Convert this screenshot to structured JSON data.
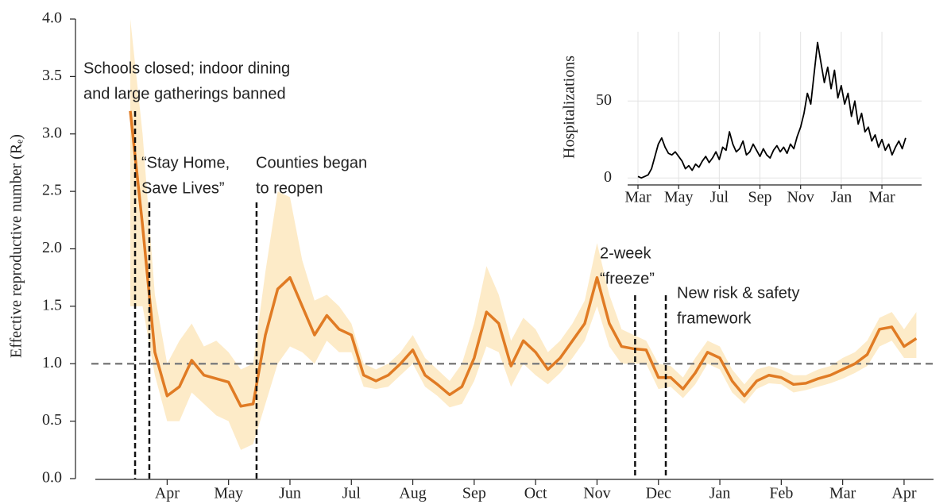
{
  "chart_data": [
    {
      "type": "line",
      "ylabel": "Effective reproductive number (Rₑ)",
      "categories": [
        null,
        null,
        null,
        "Apr",
        null,
        null,
        null,
        null,
        "May",
        null,
        null,
        null,
        null,
        "Jun",
        null,
        null,
        null,
        null,
        "Jul",
        null,
        null,
        null,
        null,
        "Aug",
        null,
        null,
        null,
        null,
        "Sep",
        null,
        null,
        null,
        null,
        "Oct",
        null,
        null,
        null,
        null,
        "Nov",
        null,
        null,
        null,
        null,
        "Dec",
        null,
        null,
        null,
        null,
        "Jan",
        null,
        null,
        null,
        null,
        "Feb",
        null,
        null,
        null,
        null,
        "Mar",
        null,
        null,
        null,
        null,
        "Apr",
        null
      ],
      "series": [
        {
          "color": "#e07b24",
          "band_color": "#fdebc8",
          "values": [
            3.2,
            2.2,
            1.1,
            0.72,
            0.8,
            1.03,
            0.9,
            0.87,
            0.84,
            0.63,
            0.65,
            1.25,
            1.65,
            1.75,
            1.5,
            1.25,
            1.42,
            1.3,
            1.25,
            0.9,
            0.85,
            0.9,
            1.0,
            1.12,
            0.9,
            0.82,
            0.73,
            0.8,
            1.05,
            1.45,
            1.35,
            0.98,
            1.2,
            1.1,
            0.95,
            1.05,
            1.2,
            1.35,
            1.75,
            1.35,
            1.15,
            1.13,
            1.12,
            0.88,
            0.88,
            0.78,
            0.92,
            1.1,
            1.05,
            0.85,
            0.72,
            0.85,
            0.9,
            0.88,
            0.82,
            0.83,
            0.87,
            0.9,
            0.95,
            1.0,
            1.08,
            1.3,
            1.32,
            1.15,
            1.22
          ],
          "lower": [
            1.5,
            1.5,
            0.9,
            0.5,
            0.5,
            0.75,
            0.65,
            0.55,
            0.5,
            0.25,
            0.3,
            0.65,
            1.0,
            1.15,
            1.1,
            1.0,
            1.2,
            1.1,
            1.1,
            0.8,
            0.78,
            0.8,
            0.9,
            1.0,
            0.8,
            0.72,
            0.62,
            0.65,
            0.85,
            1.15,
            1.1,
            0.8,
            1.0,
            0.9,
            0.82,
            0.92,
            1.05,
            1.2,
            1.5,
            1.15,
            1.0,
            1.0,
            1.0,
            0.78,
            0.8,
            0.7,
            0.82,
            1.0,
            0.95,
            0.75,
            0.65,
            0.78,
            0.83,
            0.82,
            0.75,
            0.77,
            0.8,
            0.83,
            0.87,
            0.92,
            0.98,
            1.15,
            1.2,
            1.05,
            1.05
          ],
          "upper": [
            4.0,
            3.0,
            1.6,
            1.0,
            1.2,
            1.35,
            1.15,
            1.2,
            1.1,
            0.95,
            1.0,
            1.8,
            2.5,
            2.45,
            1.9,
            1.55,
            1.6,
            1.5,
            1.35,
            1.0,
            0.95,
            1.0,
            1.1,
            1.25,
            1.05,
            0.95,
            0.85,
            1.0,
            1.35,
            1.85,
            1.6,
            1.2,
            1.4,
            1.3,
            1.1,
            1.2,
            1.35,
            1.55,
            2.05,
            1.6,
            1.3,
            1.25,
            1.2,
            1.0,
            0.98,
            0.88,
            1.05,
            1.2,
            1.15,
            0.95,
            0.82,
            0.95,
            0.98,
            0.95,
            0.9,
            0.9,
            0.95,
            0.98,
            1.05,
            1.1,
            1.2,
            1.4,
            1.45,
            1.3,
            1.45
          ]
        }
      ],
      "ylim": [
        0,
        4
      ],
      "yticks": [
        {
          "value": 0,
          "label": "0.0"
        },
        0.5,
        {
          "value": 1,
          "label": "1.0"
        },
        1.5,
        {
          "value": 2,
          "label": "2.0"
        },
        2.5,
        {
          "value": 3,
          "label": "3.0"
        },
        3.5,
        {
          "value": 4,
          "label": "4.0"
        }
      ],
      "hline": {
        "value": 1,
        "color": "#808080"
      },
      "events": [
        {
          "x": 0.39,
          "text": [
            "Schools closed; indoor dining",
            "and large gatherings banned"
          ]
        },
        {
          "x": 1.55,
          "text": [
            "“Stay Home,",
            "Save Lives”"
          ]
        },
        {
          "x": 10.28,
          "text": [
            "Counties began",
            "to reopen"
          ]
        },
        {
          "x": 41.1,
          "text": [
            "2-week",
            "“freeze”"
          ]
        },
        {
          "x": 43.6,
          "text": [
            "New risk & safety",
            "framework"
          ]
        }
      ]
    },
    {
      "type": "line",
      "ylabel": "Hospitalizations",
      "categories": [
        "Mar",
        null,
        null,
        null,
        null,
        null,
        null,
        null,
        null,
        null,
        null,
        null,
        "May",
        null,
        null,
        null,
        null,
        null,
        null,
        null,
        null,
        null,
        null,
        null,
        "Jul",
        null,
        null,
        null,
        null,
        null,
        null,
        null,
        null,
        null,
        null,
        null,
        "Sep",
        null,
        null,
        null,
        null,
        null,
        null,
        null,
        null,
        null,
        null,
        null,
        "Nov",
        null,
        null,
        null,
        null,
        null,
        null,
        null,
        null,
        null,
        null,
        null,
        "Jan",
        null,
        null,
        null,
        null,
        null,
        null,
        null,
        null,
        null,
        null,
        null,
        "Mar",
        null,
        null,
        null,
        null,
        null,
        null,
        null
      ],
      "series": [
        {
          "color": "#000000",
          "values": [
            1,
            0,
            1,
            2,
            6,
            14,
            22,
            26,
            20,
            16,
            15,
            17,
            14,
            11,
            6,
            8,
            5,
            9,
            7,
            11,
            14,
            10,
            13,
            17,
            12,
            20,
            18,
            30,
            22,
            17,
            19,
            24,
            15,
            17,
            22,
            18,
            14,
            19,
            15,
            13,
            18,
            21,
            17,
            20,
            16,
            22,
            19,
            27,
            33,
            42,
            55,
            48,
            68,
            88,
            75,
            62,
            72,
            58,
            70,
            52,
            60,
            48,
            55,
            40,
            50,
            35,
            42,
            30,
            33,
            24,
            28,
            20,
            25,
            18,
            22,
            15,
            20,
            24,
            19,
            26
          ]
        }
      ],
      "ylim": [
        -4,
        95
      ],
      "yticks": [
        0,
        50
      ],
      "grid": true
    }
  ]
}
